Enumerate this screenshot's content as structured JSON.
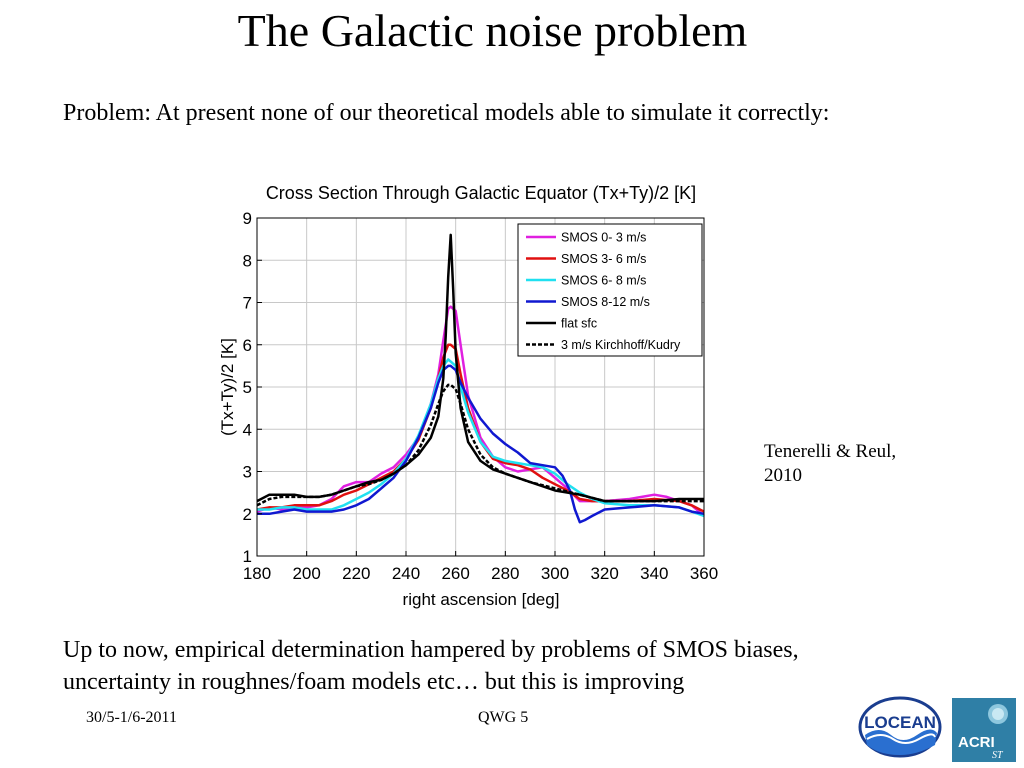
{
  "slide": {
    "title": "The Galactic noise problem",
    "problem_text": "Problem: At present none of our theoretical models able to simulate it correctly:",
    "citation_line1": "Tenerelli & Reul,",
    "citation_line2": "2010",
    "bottom_line1": "Up to now, empirical determination hampered by problems of SMOS biases,",
    "bottom_line2": "uncertainty in roughnes/foam models etc… but this is improving",
    "footer_date": "30/5-1/6-2011",
    "footer_center": "QWG 5",
    "logos": {
      "locean": "LOCEAN",
      "acri": "ACRI",
      "acri_sub": "ST"
    }
  },
  "chart_data": {
    "type": "line",
    "title": "Cross Section Through Galactic Equator (Tx+Ty)/2 [K]",
    "xlabel": "right ascension [deg]",
    "ylabel": "(Tx+Ty)/2 [K]",
    "xlim": [
      180,
      360
    ],
    "ylim": [
      1,
      9
    ],
    "xticks": [
      180,
      200,
      220,
      240,
      260,
      280,
      300,
      320,
      340,
      360
    ],
    "yticks": [
      1,
      2,
      3,
      4,
      5,
      6,
      7,
      8,
      9
    ],
    "grid": true,
    "legend_position": "top-right",
    "series": [
      {
        "name": "SMOS  0- 3 m/s",
        "color": "#e020e0",
        "dash": "solid",
        "x": [
          180,
          185,
          190,
          195,
          200,
          205,
          210,
          215,
          220,
          225,
          230,
          235,
          240,
          245,
          250,
          253,
          255,
          257,
          258,
          260,
          262,
          265,
          270,
          275,
          280,
          285,
          290,
          295,
          300,
          305,
          310,
          315,
          320,
          330,
          340,
          345,
          350,
          355,
          358,
          360
        ],
        "y": [
          2.05,
          2.15,
          2.1,
          2.15,
          2.15,
          2.2,
          2.35,
          2.65,
          2.75,
          2.75,
          2.95,
          3.1,
          3.4,
          3.8,
          4.6,
          5.3,
          6.1,
          6.85,
          6.9,
          6.8,
          6.0,
          4.8,
          3.8,
          3.35,
          3.1,
          3.0,
          3.05,
          3.1,
          2.85,
          2.6,
          2.3,
          2.3,
          2.3,
          2.35,
          2.45,
          2.4,
          2.3,
          2.2,
          2.05,
          1.95
        ]
      },
      {
        "name": "SMOS  3- 6 m/s",
        "color": "#e01010",
        "dash": "solid",
        "x": [
          180,
          185,
          190,
          195,
          200,
          205,
          210,
          215,
          220,
          225,
          230,
          235,
          240,
          245,
          250,
          253,
          255,
          257,
          258,
          260,
          262,
          265,
          270,
          275,
          280,
          285,
          290,
          295,
          300,
          305,
          310,
          315,
          320,
          330,
          340,
          350,
          355,
          360
        ],
        "y": [
          2.1,
          2.15,
          2.15,
          2.2,
          2.2,
          2.2,
          2.3,
          2.45,
          2.55,
          2.7,
          2.85,
          3.0,
          3.3,
          3.75,
          4.5,
          5.2,
          5.7,
          6.0,
          6.0,
          5.9,
          5.3,
          4.5,
          3.7,
          3.3,
          3.2,
          3.15,
          3.05,
          2.85,
          2.7,
          2.55,
          2.35,
          2.3,
          2.3,
          2.3,
          2.35,
          2.3,
          2.2,
          2.05
        ]
      },
      {
        "name": "SMOS  6- 8 m/s",
        "color": "#20e0f0",
        "dash": "solid",
        "x": [
          180,
          185,
          190,
          195,
          200,
          205,
          210,
          215,
          220,
          225,
          230,
          235,
          240,
          245,
          250,
          253,
          255,
          257,
          258,
          260,
          262,
          265,
          270,
          275,
          280,
          285,
          290,
          295,
          300,
          305,
          310,
          315,
          320,
          330,
          340,
          350,
          355,
          360
        ],
        "y": [
          2.1,
          2.1,
          2.15,
          2.15,
          2.1,
          2.1,
          2.1,
          2.2,
          2.35,
          2.5,
          2.7,
          2.95,
          3.3,
          3.85,
          4.6,
          5.2,
          5.5,
          5.65,
          5.6,
          5.5,
          5.0,
          4.4,
          3.7,
          3.35,
          3.25,
          3.2,
          3.15,
          3.1,
          2.95,
          2.7,
          2.5,
          2.35,
          2.25,
          2.2,
          2.2,
          2.15,
          2.05,
          1.95
        ]
      },
      {
        "name": "SMOS  8-12 m/s",
        "color": "#1018d0",
        "dash": "solid",
        "x": [
          180,
          185,
          190,
          195,
          200,
          205,
          210,
          215,
          220,
          225,
          230,
          235,
          240,
          245,
          250,
          253,
          255,
          257,
          258,
          260,
          262,
          265,
          270,
          275,
          280,
          285,
          290,
          295,
          300,
          303,
          306,
          308,
          310,
          312,
          315,
          320,
          330,
          340,
          350,
          355,
          360
        ],
        "y": [
          2.0,
          2.0,
          2.05,
          2.1,
          2.05,
          2.05,
          2.05,
          2.1,
          2.2,
          2.35,
          2.6,
          2.85,
          3.25,
          3.8,
          4.5,
          5.1,
          5.4,
          5.5,
          5.5,
          5.4,
          5.1,
          4.75,
          4.25,
          3.9,
          3.65,
          3.45,
          3.2,
          3.15,
          3.1,
          2.9,
          2.55,
          2.1,
          1.8,
          1.85,
          1.95,
          2.1,
          2.15,
          2.2,
          2.15,
          2.05,
          2.0
        ]
      },
      {
        "name": "flat sfc",
        "color": "#000000",
        "dash": "solid",
        "x": [
          180,
          185,
          190,
          195,
          200,
          205,
          210,
          215,
          220,
          225,
          230,
          235,
          240,
          245,
          250,
          253,
          255,
          256,
          257,
          258,
          259,
          260,
          262,
          265,
          270,
          275,
          280,
          290,
          300,
          310,
          320,
          330,
          340,
          350,
          355,
          360
        ],
        "y": [
          2.3,
          2.45,
          2.45,
          2.45,
          2.4,
          2.4,
          2.45,
          2.55,
          2.65,
          2.75,
          2.8,
          2.95,
          3.15,
          3.4,
          3.8,
          4.3,
          5.2,
          6.2,
          7.6,
          8.6,
          7.3,
          5.8,
          4.5,
          3.7,
          3.25,
          3.05,
          2.95,
          2.75,
          2.55,
          2.45,
          2.3,
          2.3,
          2.3,
          2.35,
          2.35,
          2.35
        ]
      },
      {
        "name": "3 m/s Kirchhoff/Kudry",
        "color": "#000000",
        "dash": "dashed",
        "x": [
          180,
          185,
          190,
          195,
          200,
          205,
          210,
          215,
          220,
          225,
          230,
          235,
          240,
          245,
          250,
          253,
          255,
          257,
          258,
          260,
          262,
          265,
          270,
          275,
          280,
          290,
          300,
          310,
          320,
          330,
          340,
          350,
          360
        ],
        "y": [
          2.2,
          2.35,
          2.4,
          2.4,
          2.4,
          2.4,
          2.45,
          2.55,
          2.65,
          2.7,
          2.8,
          2.95,
          3.15,
          3.5,
          4.1,
          4.6,
          4.9,
          5.05,
          5.05,
          4.95,
          4.6,
          4.0,
          3.4,
          3.1,
          2.95,
          2.75,
          2.6,
          2.45,
          2.3,
          2.3,
          2.3,
          2.3,
          2.3
        ]
      }
    ]
  }
}
